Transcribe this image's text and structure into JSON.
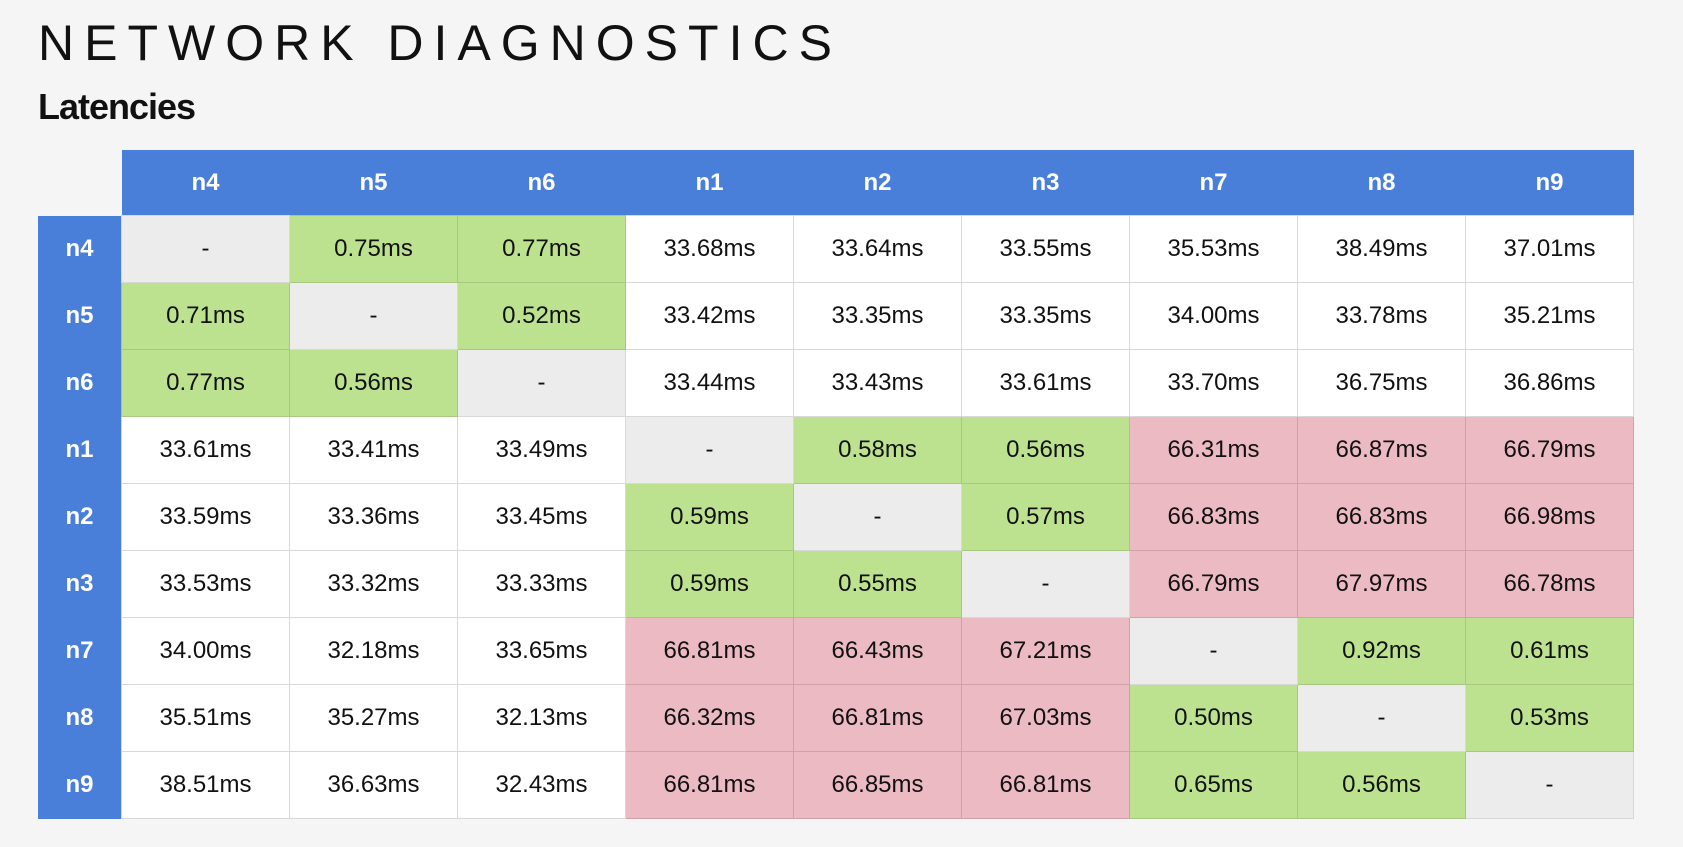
{
  "header": {
    "title": "NETWORK DIAGNOSTICS",
    "subtitle": "Latencies"
  },
  "colors": {
    "header_bg": "#4a7fd9",
    "low_latency": "#bde28f",
    "high_latency": "#ecbac2",
    "self": "#ececec",
    "normal": "#ffffff"
  },
  "latency_table": {
    "columns": [
      "n4",
      "n5",
      "n6",
      "n1",
      "n2",
      "n3",
      "n7",
      "n8",
      "n9"
    ],
    "rows": [
      {
        "label": "n4",
        "cells": [
          {
            "v": "-",
            "s": "self"
          },
          {
            "v": "0.75ms",
            "s": "ok"
          },
          {
            "v": "0.77ms",
            "s": "ok"
          },
          {
            "v": "33.68ms",
            "s": "normal"
          },
          {
            "v": "33.64ms",
            "s": "normal"
          },
          {
            "v": "33.55ms",
            "s": "normal"
          },
          {
            "v": "35.53ms",
            "s": "normal"
          },
          {
            "v": "38.49ms",
            "s": "normal"
          },
          {
            "v": "37.01ms",
            "s": "normal"
          }
        ]
      },
      {
        "label": "n5",
        "cells": [
          {
            "v": "0.71ms",
            "s": "ok"
          },
          {
            "v": "-",
            "s": "self"
          },
          {
            "v": "0.52ms",
            "s": "ok"
          },
          {
            "v": "33.42ms",
            "s": "normal"
          },
          {
            "v": "33.35ms",
            "s": "normal"
          },
          {
            "v": "33.35ms",
            "s": "normal"
          },
          {
            "v": "34.00ms",
            "s": "normal"
          },
          {
            "v": "33.78ms",
            "s": "normal"
          },
          {
            "v": "35.21ms",
            "s": "normal"
          }
        ]
      },
      {
        "label": "n6",
        "cells": [
          {
            "v": "0.77ms",
            "s": "ok"
          },
          {
            "v": "0.56ms",
            "s": "ok"
          },
          {
            "v": "-",
            "s": "self"
          },
          {
            "v": "33.44ms",
            "s": "normal"
          },
          {
            "v": "33.43ms",
            "s": "normal"
          },
          {
            "v": "33.61ms",
            "s": "normal"
          },
          {
            "v": "33.70ms",
            "s": "normal"
          },
          {
            "v": "36.75ms",
            "s": "normal"
          },
          {
            "v": "36.86ms",
            "s": "normal"
          }
        ]
      },
      {
        "label": "n1",
        "cells": [
          {
            "v": "33.61ms",
            "s": "normal"
          },
          {
            "v": "33.41ms",
            "s": "normal"
          },
          {
            "v": "33.49ms",
            "s": "normal"
          },
          {
            "v": "-",
            "s": "self"
          },
          {
            "v": "0.58ms",
            "s": "ok"
          },
          {
            "v": "0.56ms",
            "s": "ok"
          },
          {
            "v": "66.31ms",
            "s": "bad"
          },
          {
            "v": "66.87ms",
            "s": "bad"
          },
          {
            "v": "66.79ms",
            "s": "bad"
          }
        ]
      },
      {
        "label": "n2",
        "cells": [
          {
            "v": "33.59ms",
            "s": "normal"
          },
          {
            "v": "33.36ms",
            "s": "normal"
          },
          {
            "v": "33.45ms",
            "s": "normal"
          },
          {
            "v": "0.59ms",
            "s": "ok"
          },
          {
            "v": "-",
            "s": "self"
          },
          {
            "v": "0.57ms",
            "s": "ok"
          },
          {
            "v": "66.83ms",
            "s": "bad"
          },
          {
            "v": "66.83ms",
            "s": "bad"
          },
          {
            "v": "66.98ms",
            "s": "bad"
          }
        ]
      },
      {
        "label": "n3",
        "cells": [
          {
            "v": "33.53ms",
            "s": "normal"
          },
          {
            "v": "33.32ms",
            "s": "normal"
          },
          {
            "v": "33.33ms",
            "s": "normal"
          },
          {
            "v": "0.59ms",
            "s": "ok"
          },
          {
            "v": "0.55ms",
            "s": "ok"
          },
          {
            "v": "-",
            "s": "self"
          },
          {
            "v": "66.79ms",
            "s": "bad"
          },
          {
            "v": "67.97ms",
            "s": "bad"
          },
          {
            "v": "66.78ms",
            "s": "bad"
          }
        ]
      },
      {
        "label": "n7",
        "cells": [
          {
            "v": "34.00ms",
            "s": "normal"
          },
          {
            "v": "32.18ms",
            "s": "normal"
          },
          {
            "v": "33.65ms",
            "s": "normal"
          },
          {
            "v": "66.81ms",
            "s": "bad"
          },
          {
            "v": "66.43ms",
            "s": "bad"
          },
          {
            "v": "67.21ms",
            "s": "bad"
          },
          {
            "v": "-",
            "s": "self"
          },
          {
            "v": "0.92ms",
            "s": "ok"
          },
          {
            "v": "0.61ms",
            "s": "ok"
          }
        ]
      },
      {
        "label": "n8",
        "cells": [
          {
            "v": "35.51ms",
            "s": "normal"
          },
          {
            "v": "35.27ms",
            "s": "normal"
          },
          {
            "v": "32.13ms",
            "s": "normal"
          },
          {
            "v": "66.32ms",
            "s": "bad"
          },
          {
            "v": "66.81ms",
            "s": "bad"
          },
          {
            "v": "67.03ms",
            "s": "bad"
          },
          {
            "v": "0.50ms",
            "s": "ok"
          },
          {
            "v": "-",
            "s": "self"
          },
          {
            "v": "0.53ms",
            "s": "ok"
          }
        ]
      },
      {
        "label": "n9",
        "cells": [
          {
            "v": "38.51ms",
            "s": "normal"
          },
          {
            "v": "36.63ms",
            "s": "normal"
          },
          {
            "v": "32.43ms",
            "s": "normal"
          },
          {
            "v": "66.81ms",
            "s": "bad"
          },
          {
            "v": "66.85ms",
            "s": "bad"
          },
          {
            "v": "66.81ms",
            "s": "bad"
          },
          {
            "v": "0.65ms",
            "s": "ok"
          },
          {
            "v": "0.56ms",
            "s": "ok"
          },
          {
            "v": "-",
            "s": "self"
          }
        ]
      }
    ]
  }
}
